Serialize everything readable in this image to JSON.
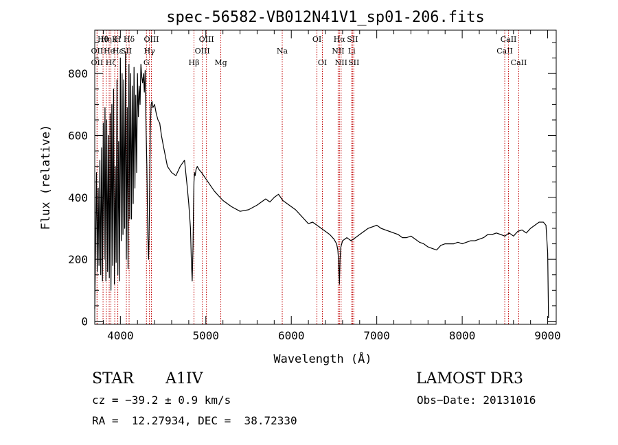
{
  "chart_data": {
    "type": "line",
    "title": "spec-56582-VB012N41V1_sp01-206.fits",
    "xlabel": "Wavelength (Å)",
    "ylabel": "Flux (relative)",
    "xlim": [
      3700,
      9100
    ],
    "ylim": [
      -10,
      940
    ],
    "x_ticks": [
      4000,
      5000,
      6000,
      7000,
      8000,
      9000
    ],
    "x_tick_labels": [
      "4000",
      "5000",
      "6000",
      "7000",
      "8000",
      "9000"
    ],
    "y_ticks": [
      0,
      200,
      400,
      600,
      800
    ],
    "y_tick_labels": [
      "0",
      "200",
      "400",
      "600",
      "800"
    ],
    "grid": false,
    "series": [
      {
        "name": "flux",
        "x": [
          3700,
          3710,
          3720,
          3730,
          3740,
          3750,
          3760,
          3770,
          3780,
          3790,
          3800,
          3810,
          3820,
          3830,
          3840,
          3850,
          3860,
          3870,
          3880,
          3890,
          3900,
          3910,
          3920,
          3930,
          3940,
          3950,
          3960,
          3970,
          3980,
          3990,
          4000,
          4010,
          4020,
          4030,
          4040,
          4050,
          4060,
          4070,
          4080,
          4090,
          4100,
          4110,
          4120,
          4130,
          4140,
          4150,
          4160,
          4170,
          4180,
          4190,
          4200,
          4210,
          4220,
          4230,
          4240,
          4250,
          4260,
          4270,
          4280,
          4290,
          4300,
          4310,
          4320,
          4330,
          4340,
          4350,
          4360,
          4370,
          4380,
          4400,
          4420,
          4440,
          4460,
          4480,
          4500,
          4550,
          4600,
          4650,
          4700,
          4750,
          4780,
          4800,
          4820,
          4830,
          4840,
          4850,
          4855,
          4861,
          4867,
          4875,
          4885,
          4900,
          4920,
          4950,
          5000,
          5050,
          5100,
          5150,
          5200,
          5300,
          5400,
          5500,
          5600,
          5700,
          5750,
          5800,
          5850,
          5900,
          5950,
          6000,
          6050,
          6100,
          6150,
          6200,
          6250,
          6300,
          6350,
          6400,
          6450,
          6500,
          6530,
          6545,
          6555,
          6563,
          6570,
          6580,
          6600,
          6650,
          6700,
          6750,
          6800,
          6850,
          6900,
          6950,
          7000,
          7050,
          7100,
          7150,
          7200,
          7250,
          7300,
          7350,
          7400,
          7450,
          7500,
          7550,
          7600,
          7650,
          7700,
          7750,
          7800,
          7850,
          7900,
          7950,
          8000,
          8050,
          8100,
          8150,
          8200,
          8250,
          8300,
          8350,
          8400,
          8450,
          8500,
          8550,
          8600,
          8650,
          8700,
          8750,
          8800,
          8850,
          8900,
          8950,
          8980,
          9000,
          9010
        ],
        "y": [
          40,
          250,
          480,
          160,
          430,
          180,
          520,
          150,
          560,
          130,
          640,
          200,
          690,
          130,
          650,
          160,
          600,
          140,
          670,
          100,
          700,
          180,
          750,
          120,
          500,
          190,
          780,
          150,
          580,
          130,
          850,
          260,
          800,
          280,
          780,
          300,
          870,
          200,
          690,
          170,
          830,
          330,
          800,
          330,
          760,
          380,
          820,
          430,
          730,
          480,
          800,
          660,
          760,
          700,
          830,
          790,
          770,
          800,
          740,
          810,
          620,
          500,
          280,
          200,
          350,
          620,
          700,
          710,
          690,
          700,
          670,
          650,
          640,
          600,
          570,
          500,
          480,
          470,
          500,
          520,
          440,
          380,
          300,
          200,
          130,
          240,
          350,
          450,
          480,
          470,
          490,
          500,
          490,
          480,
          460,
          440,
          420,
          405,
          390,
          370,
          355,
          360,
          375,
          395,
          385,
          400,
          410,
          390,
          380,
          370,
          360,
          345,
          330,
          315,
          320,
          310,
          300,
          290,
          280,
          265,
          250,
          230,
          190,
          120,
          200,
          240,
          260,
          270,
          260,
          270,
          280,
          290,
          300,
          305,
          310,
          300,
          295,
          290,
          285,
          280,
          270,
          270,
          275,
          265,
          255,
          250,
          240,
          235,
          230,
          245,
          250,
          250,
          250,
          255,
          250,
          255,
          260,
          260,
          265,
          270,
          280,
          280,
          285,
          280,
          275,
          285,
          275,
          290,
          295,
          285,
          300,
          310,
          320,
          320,
          310,
          220,
          10
        ]
      }
    ],
    "line_annotations": [
      {
        "wavelength": 3727,
        "label": "OII",
        "row": 1
      },
      {
        "wavelength": 3727,
        "label": "OII",
        "row": 2
      },
      {
        "wavelength": 3797,
        "label": "Hθ",
        "row": 0
      },
      {
        "wavelength": 3835,
        "label": "Hη",
        "row": 0
      },
      {
        "wavelength": 3869,
        "label": "He",
        "row": 1
      },
      {
        "wavelength": 3889,
        "label": "Hζ",
        "row": 2
      },
      {
        "wavelength": 3934,
        "label": "K",
        "row": 0
      },
      {
        "wavelength": 3969,
        "label": "H",
        "row": 0
      },
      {
        "wavelength": 3970,
        "label": "Hε",
        "row": 1
      },
      {
        "wavelength": 4070,
        "label": "SII",
        "row": 1
      },
      {
        "wavelength": 4102,
        "label": "Hδ",
        "row": 0
      },
      {
        "wavelength": 4305,
        "label": "G",
        "row": 2
      },
      {
        "wavelength": 4340,
        "label": "Hγ",
        "row": 1
      },
      {
        "wavelength": 4363,
        "label": "OIII",
        "row": 0
      },
      {
        "wavelength": 4861,
        "label": "Hβ",
        "row": 2
      },
      {
        "wavelength": 4959,
        "label": "OIII",
        "row": 1
      },
      {
        "wavelength": 5007,
        "label": "OIII",
        "row": 0
      },
      {
        "wavelength": 5175,
        "label": "Mg",
        "row": 2
      },
      {
        "wavelength": 5894,
        "label": "Na",
        "row": 1
      },
      {
        "wavelength": 6300,
        "label": "OI",
        "row": 0
      },
      {
        "wavelength": 6364,
        "label": "OI",
        "row": 2
      },
      {
        "wavelength": 6548,
        "label": "NII",
        "row": 1
      },
      {
        "wavelength": 6563,
        "label": "Hα",
        "row": 0
      },
      {
        "wavelength": 6583,
        "label": "NII",
        "row": 2
      },
      {
        "wavelength": 6707,
        "label": "Li",
        "row": 1
      },
      {
        "wavelength": 6716,
        "label": "SII",
        "row": 0
      },
      {
        "wavelength": 6731,
        "label": "SII",
        "row": 2
      },
      {
        "wavelength": 8498,
        "label": "CaII",
        "row": 1
      },
      {
        "wavelength": 8542,
        "label": "CaII",
        "row": 0
      },
      {
        "wavelength": 8662,
        "label": "CaII",
        "row": 2
      }
    ]
  },
  "info": {
    "class_label": "STAR",
    "subclass": "A1IV",
    "survey": "LAMOST DR3",
    "cz": "cz = −39.2 ± 0.9 km/s",
    "obs_date": "Obs−Date: 20131016",
    "coords": "RA =  12.27934, DEC =  38.72330"
  },
  "colors": {
    "axis": "#000000",
    "spectrum": "#000000",
    "line_marker": "#c00000"
  }
}
